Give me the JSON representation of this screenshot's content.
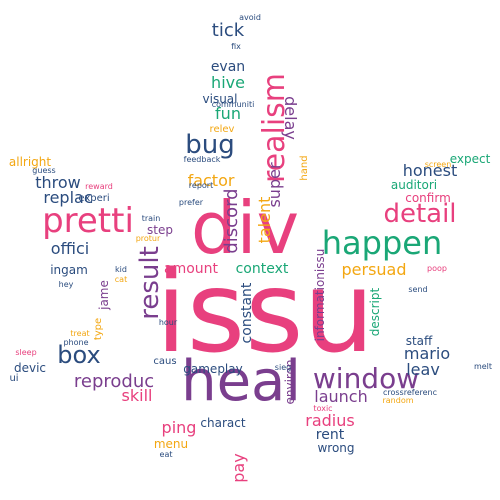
{
  "palette": {
    "pink": "#e8407e",
    "purple": "#7a3e8e",
    "green": "#1aa776",
    "navy": "#2b4c7e",
    "orange": "#f3a712"
  },
  "words": [
    {
      "text": "issu",
      "color": "pink"
    },
    {
      "text": "div",
      "color": "pink"
    },
    {
      "text": "heal",
      "color": "purple"
    },
    {
      "text": "pretti",
      "color": "pink"
    },
    {
      "text": "happen",
      "color": "green"
    },
    {
      "text": "detail",
      "color": "pink"
    },
    {
      "text": "window",
      "color": "purple"
    },
    {
      "text": "realism",
      "color": "pink"
    },
    {
      "text": "result",
      "color": "purple"
    },
    {
      "text": "bug",
      "color": "navy"
    },
    {
      "text": "box",
      "color": "navy"
    },
    {
      "text": "reproduc",
      "color": "purple"
    },
    {
      "text": "discord",
      "color": "purple"
    },
    {
      "text": "launch",
      "color": "purple"
    },
    {
      "text": "honest",
      "color": "navy"
    },
    {
      "text": "mario",
      "color": "navy"
    },
    {
      "text": "tick",
      "color": "navy"
    },
    {
      "text": "evan",
      "color": "navy"
    },
    {
      "text": "hive",
      "color": "green"
    },
    {
      "text": "fun",
      "color": "green"
    },
    {
      "text": "factor",
      "color": "orange"
    },
    {
      "text": "throw",
      "color": "navy"
    },
    {
      "text": "replac",
      "color": "navy"
    },
    {
      "text": "offici",
      "color": "navy"
    },
    {
      "text": "amount",
      "color": "pink"
    },
    {
      "text": "context",
      "color": "green"
    },
    {
      "text": "persuad",
      "color": "orange"
    },
    {
      "text": "skill",
      "color": "pink"
    },
    {
      "text": "radius",
      "color": "pink"
    },
    {
      "text": "rent",
      "color": "navy"
    },
    {
      "text": "ping",
      "color": "pink"
    },
    {
      "text": "pay",
      "color": "pink"
    },
    {
      "text": "talent",
      "color": "orange"
    },
    {
      "text": "constant",
      "color": "navy"
    },
    {
      "text": "super",
      "color": "purple"
    },
    {
      "text": "delay",
      "color": "purple"
    },
    {
      "text": "leav",
      "color": "navy"
    },
    {
      "text": "step",
      "color": "purple"
    },
    {
      "text": "ingam",
      "color": "navy"
    },
    {
      "text": "jame",
      "color": "purple"
    },
    {
      "text": "auditori",
      "color": "green"
    },
    {
      "text": "confirm",
      "color": "pink"
    },
    {
      "text": "expect",
      "color": "green"
    },
    {
      "text": "staff",
      "color": "navy"
    },
    {
      "text": "charact",
      "color": "navy"
    },
    {
      "text": "wrong",
      "color": "navy"
    },
    {
      "text": "menu",
      "color": "orange"
    },
    {
      "text": "visual",
      "color": "navy"
    },
    {
      "text": "gameplay",
      "color": "navy"
    },
    {
      "text": "devic",
      "color": "navy"
    },
    {
      "text": "allright",
      "color": "orange"
    },
    {
      "text": "informationissu",
      "color": "purple"
    },
    {
      "text": "descript",
      "color": "green"
    },
    {
      "text": "environ",
      "color": "purple"
    },
    {
      "text": "experi",
      "color": "navy"
    },
    {
      "text": "caus",
      "color": "navy"
    },
    {
      "text": "ui",
      "color": "navy"
    },
    {
      "text": "type",
      "color": "orange"
    },
    {
      "text": "hand",
      "color": "orange"
    },
    {
      "text": "relev",
      "color": "orange"
    },
    {
      "text": "eat",
      "color": "navy"
    },
    {
      "text": "avoid",
      "color": "navy"
    },
    {
      "text": "fix",
      "color": "navy"
    },
    {
      "text": "communiti",
      "color": "navy"
    },
    {
      "text": "feedback",
      "color": "navy"
    },
    {
      "text": "report",
      "color": "navy"
    },
    {
      "text": "prefer",
      "color": "navy"
    },
    {
      "text": "crossreferenc",
      "color": "navy"
    },
    {
      "text": "random",
      "color": "orange"
    },
    {
      "text": "toxic",
      "color": "pink"
    },
    {
      "text": "sleep",
      "color": "pink"
    },
    {
      "text": "melt",
      "color": "navy"
    },
    {
      "text": "poop",
      "color": "pink"
    },
    {
      "text": "send",
      "color": "navy"
    },
    {
      "text": "guess",
      "color": "navy"
    },
    {
      "text": "reward",
      "color": "pink"
    },
    {
      "text": "screen",
      "color": "orange"
    },
    {
      "text": "train",
      "color": "navy"
    },
    {
      "text": "protur",
      "color": "orange"
    },
    {
      "text": "kid",
      "color": "navy"
    },
    {
      "text": "cat",
      "color": "orange"
    },
    {
      "text": "hey",
      "color": "navy"
    },
    {
      "text": "treat",
      "color": "orange"
    },
    {
      "text": "phone",
      "color": "navy"
    },
    {
      "text": "hour",
      "color": "navy"
    },
    {
      "text": "sieg",
      "color": "navy"
    }
  ]
}
